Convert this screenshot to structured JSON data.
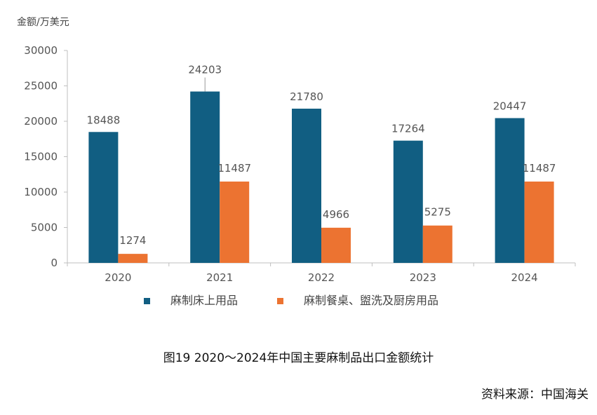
{
  "chart_data": {
    "type": "bar",
    "ylabel": "金额/万美元",
    "categories": [
      "2020",
      "2021",
      "2022",
      "2023",
      "2024"
    ],
    "series": [
      {
        "name": "麻制床上用品",
        "values": [
          18488,
          24203,
          21780,
          17264,
          20447
        ],
        "color": "#115e82"
      },
      {
        "name": "麻制餐桌、盥洗及厨房用品",
        "values": [
          1274,
          11487,
          4966,
          5275,
          11487
        ],
        "color": "#ec7331"
      }
    ],
    "ylim": [
      0,
      30000
    ],
    "yticks": [
      0,
      5000,
      10000,
      15000,
      20000,
      25000,
      30000
    ],
    "grid": false,
    "legend_position": "bottom",
    "axis_color": "#bfbfbf"
  },
  "caption": "图19  2020～2024年中国主要麻制品出口金额统计",
  "source": "资料来源：中国海关"
}
